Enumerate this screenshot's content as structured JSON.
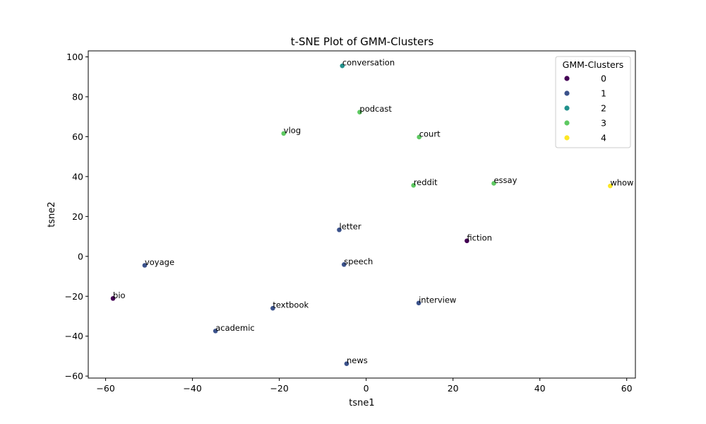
{
  "chart_data": {
    "type": "scatter",
    "title": "t-SNE Plot of GMM-Clusters",
    "xlabel": "tsne1",
    "ylabel": "tsne2",
    "xlim": [
      -64,
      62
    ],
    "ylim": [
      -61,
      103
    ],
    "xticks": [
      -60,
      -40,
      -20,
      0,
      20,
      40,
      60
    ],
    "yticks": [
      -60,
      -40,
      -20,
      0,
      20,
      40,
      60,
      80,
      100
    ],
    "tick_labels_x": [
      "−60",
      "−40",
      "−20",
      "0",
      "20",
      "40",
      "60"
    ],
    "tick_labels_y": [
      "−60",
      "−40",
      "−20",
      "0",
      "20",
      "40",
      "60",
      "80",
      "100"
    ],
    "grid": false,
    "legend": {
      "title": "GMM-Clusters",
      "position": "top-right",
      "entries": [
        {
          "label": "0",
          "cluster": 0
        },
        {
          "label": "1",
          "cluster": 1
        },
        {
          "label": "2",
          "cluster": 2
        },
        {
          "label": "3",
          "cluster": 3
        },
        {
          "label": "4",
          "cluster": 4
        }
      ]
    },
    "cluster_colors": [
      "#440154",
      "#3b528b",
      "#21918c",
      "#5ec962",
      "#fde725"
    ],
    "points": [
      {
        "label": "conversation",
        "x": -5.5,
        "y": 95.5,
        "cluster": 2
      },
      {
        "label": "podcast",
        "x": -1.5,
        "y": 72.3,
        "cluster": 3
      },
      {
        "label": "vlog",
        "x": -19,
        "y": 61.6,
        "cluster": 3
      },
      {
        "label": "court",
        "x": 12.2,
        "y": 59.8,
        "cluster": 3
      },
      {
        "label": "reddit",
        "x": 10.9,
        "y": 35.6,
        "cluster": 3
      },
      {
        "label": "essay",
        "x": 29.4,
        "y": 36.6,
        "cluster": 3
      },
      {
        "label": "whow",
        "x": 56.2,
        "y": 35.3,
        "cluster": 4
      },
      {
        "label": "letter",
        "x": -6.2,
        "y": 13.3,
        "cluster": 1
      },
      {
        "label": "fiction",
        "x": 23.2,
        "y": 7.8,
        "cluster": 0
      },
      {
        "label": "voyage",
        "x": -51,
        "y": -4.5,
        "cluster": 1
      },
      {
        "label": "speech",
        "x": -5.1,
        "y": -4.1,
        "cluster": 1
      },
      {
        "label": "bio",
        "x": -58.3,
        "y": -21.1,
        "cluster": 0
      },
      {
        "label": "interview",
        "x": 12.1,
        "y": -23.4,
        "cluster": 1
      },
      {
        "label": "textbook",
        "x": -21.5,
        "y": -26,
        "cluster": 1
      },
      {
        "label": "academic",
        "x": -34.7,
        "y": -37.4,
        "cluster": 1
      },
      {
        "label": "news",
        "x": -4.5,
        "y": -53.8,
        "cluster": 1
      }
    ]
  }
}
